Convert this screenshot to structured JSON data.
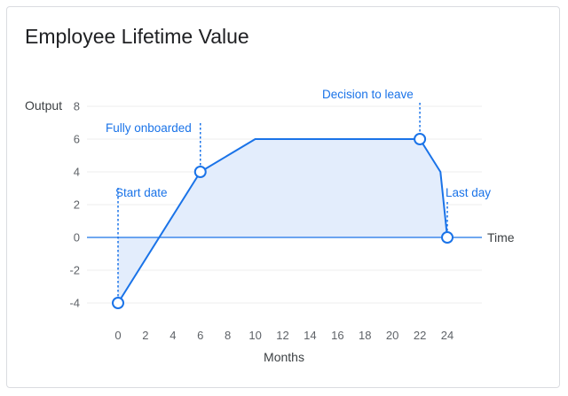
{
  "title": "Employee Lifetime Value",
  "chart_data": {
    "type": "area",
    "title": "Employee Lifetime Value",
    "xlabel": "Months",
    "ylabel": "Output",
    "zero_line_label": "Time",
    "xlim": [
      0,
      24
    ],
    "ylim": [
      -4,
      8
    ],
    "x_ticks": [
      0,
      2,
      4,
      6,
      8,
      10,
      12,
      14,
      16,
      18,
      20,
      22,
      24
    ],
    "y_ticks": [
      8,
      6,
      4,
      2,
      0,
      -2,
      -4
    ],
    "grid": true,
    "series": [
      {
        "x": [
          0,
          6,
          10,
          22,
          23.5,
          24
        ],
        "y": [
          -4,
          4,
          6,
          6,
          4,
          0
        ]
      }
    ],
    "annotations": [
      {
        "text": "Start date",
        "x": 0,
        "y": -4
      },
      {
        "text": "Fully onboarded",
        "x": 6,
        "y": 4
      },
      {
        "text": "Decision to leave",
        "x": 22,
        "y": 6
      },
      {
        "text": "Last day",
        "x": 24,
        "y": 0
      }
    ],
    "colors": {
      "line": "#1a73e8",
      "fill": "#e3edfc",
      "grid": "#eeeeee",
      "zero": "#1a73e8"
    }
  }
}
